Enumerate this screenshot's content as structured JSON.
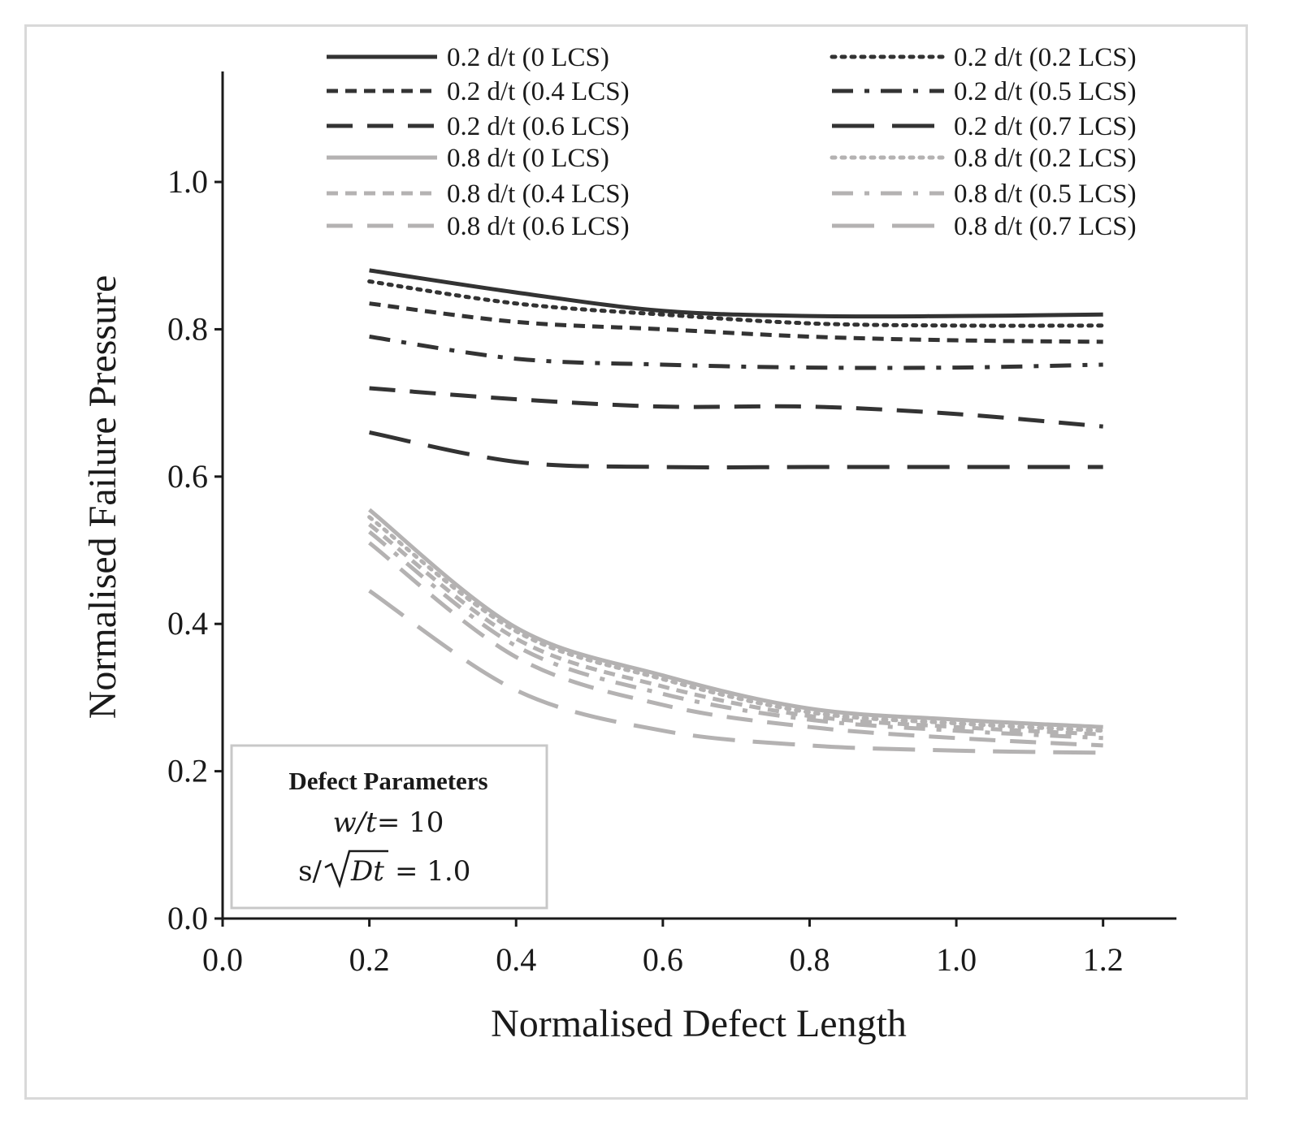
{
  "chart_data": {
    "type": "line",
    "title": "",
    "xlabel": "Normalised Defect Length",
    "ylabel": "Normalised Failure Pressure",
    "xlim": [
      0,
      1.3
    ],
    "ylim": [
      0,
      1.15
    ],
    "xticks": [
      "0.0",
      "0.2",
      "0.4",
      "0.6",
      "0.8",
      "1.0",
      "1.2"
    ],
    "yticks": [
      "0.0",
      "0.2",
      "0.4",
      "0.6",
      "0.8",
      "1.0"
    ],
    "x": [
      0.2,
      0.4,
      0.6,
      0.8,
      1.0,
      1.2
    ],
    "series": [
      {
        "name": "0.2 d/t (0 LCS)",
        "values": [
          0.88,
          0.85,
          0.825,
          0.818,
          0.818,
          0.82
        ],
        "color": "#333333",
        "dash": "solid"
      },
      {
        "name": "0.2 d/t (0.2 LCS)",
        "values": [
          0.865,
          0.835,
          0.82,
          0.808,
          0.805,
          0.805
        ],
        "color": "#333333",
        "dash": "dot"
      },
      {
        "name": "0.2 d/t (0.4 LCS)",
        "values": [
          0.835,
          0.81,
          0.8,
          0.79,
          0.785,
          0.783
        ],
        "color": "#333333",
        "dash": "short-dash"
      },
      {
        "name": "0.2 d/t (0.5 LCS)",
        "values": [
          0.79,
          0.76,
          0.752,
          0.748,
          0.748,
          0.752
        ],
        "color": "#333333",
        "dash": "dash-dot"
      },
      {
        "name": "0.2 d/t (0.6 LCS)",
        "values": [
          0.72,
          0.705,
          0.695,
          0.695,
          0.685,
          0.668
        ],
        "color": "#333333",
        "dash": "dash"
      },
      {
        "name": "0.2 d/t (0.7 LCS)",
        "values": [
          0.66,
          0.62,
          0.613,
          0.613,
          0.613,
          0.613
        ],
        "color": "#333333",
        "dash": "long-dash"
      },
      {
        "name": "0.8 d/t (0 LCS)",
        "values": [
          0.555,
          0.395,
          0.33,
          0.285,
          0.27,
          0.26
        ],
        "color": "#b4b2b2",
        "dash": "solid"
      },
      {
        "name": "0.8 d/t (0.2 LCS)",
        "values": [
          0.545,
          0.39,
          0.325,
          0.28,
          0.265,
          0.255
        ],
        "color": "#b4b2b2",
        "dash": "dot"
      },
      {
        "name": "0.8 d/t (0.4 LCS)",
        "values": [
          0.535,
          0.38,
          0.315,
          0.275,
          0.26,
          0.25
        ],
        "color": "#b4b2b2",
        "dash": "short-dash"
      },
      {
        "name": "0.8 d/t (0.5 LCS)",
        "values": [
          0.525,
          0.37,
          0.305,
          0.27,
          0.255,
          0.245
        ],
        "color": "#b4b2b2",
        "dash": "dash-dot"
      },
      {
        "name": "0.8 d/t (0.6 LCS)",
        "values": [
          0.51,
          0.355,
          0.29,
          0.26,
          0.245,
          0.235
        ],
        "color": "#b4b2b2",
        "dash": "dash"
      },
      {
        "name": "0.8 d/t (0.7 LCS)",
        "values": [
          0.445,
          0.31,
          0.255,
          0.235,
          0.228,
          0.225
        ],
        "color": "#b4b2b2",
        "dash": "long-dash"
      }
    ],
    "legend_position": "top",
    "grid": false,
    "annotation": {
      "title": "Defect Parameters",
      "line1_lhs": "w/t",
      "line1_rhs": "= 10",
      "line2_lhs": "s/",
      "line2_rad": "Dt",
      "line2_rhs": "= 1.0"
    }
  }
}
